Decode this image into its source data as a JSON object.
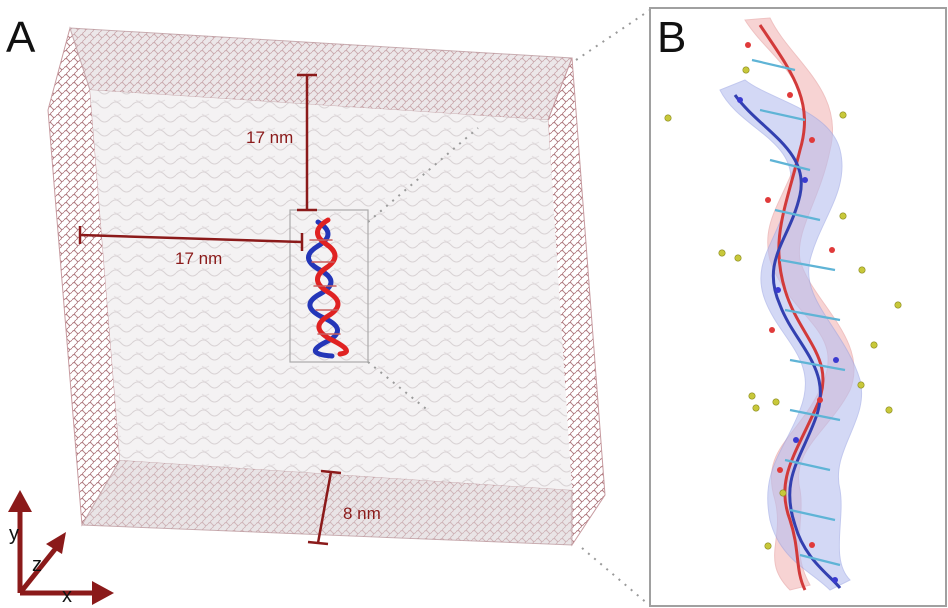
{
  "panels": {
    "a": {
      "letter": "A"
    },
    "b": {
      "letter": "B"
    }
  },
  "dimensions": {
    "vertical_top": "17 nm",
    "horizontal_left": "17 nm",
    "thickness_bottom": "8 nm"
  },
  "axes": {
    "y": "y",
    "z": "z",
    "x": "x"
  },
  "colors": {
    "dimension": "#8b1a1a",
    "strand_red": "#e02222",
    "strand_blue": "#2436b8",
    "ion": "#c8c83a",
    "box_fill": "#f4f2f3",
    "box_edge": "#b98a8f"
  }
}
